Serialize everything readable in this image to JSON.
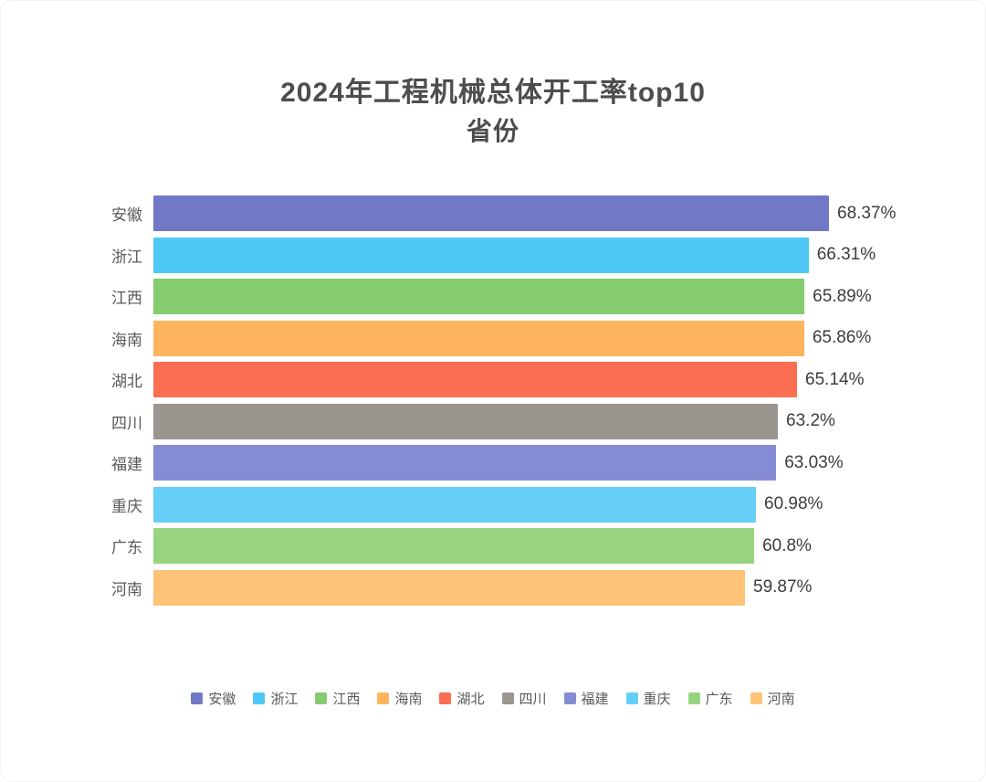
{
  "title": {
    "line1": "2024年工程机械总体开工率top10",
    "line2": "省份"
  },
  "chart_data": {
    "type": "bar",
    "orientation": "horizontal",
    "title": "2024年工程机械总体开工率top10 省份",
    "xlabel": "",
    "ylabel": "",
    "xlim": [
      0,
      70
    ],
    "grid": false,
    "categories": [
      "安徽",
      "浙江",
      "江西",
      "海南",
      "湖北",
      "四川",
      "福建",
      "重庆",
      "广东",
      "河南"
    ],
    "values": [
      68.37,
      66.31,
      65.89,
      65.86,
      65.14,
      63.2,
      63.03,
      60.98,
      60.8,
      59.87
    ],
    "value_labels": [
      "68.37%",
      "66.31%",
      "65.89%",
      "65.86%",
      "65.14%",
      "63.2%",
      "63.03%",
      "60.98%",
      "60.8%",
      "59.87%"
    ],
    "bar_colors": [
      "#7179c7",
      "#4ec9f5",
      "#84cc6d",
      "#fdb45c",
      "#fa6e51",
      "#9a968f",
      "#858cd3",
      "#66cff7",
      "#98d480",
      "#fec377"
    ],
    "legend": {
      "position": "bottom",
      "items": [
        {
          "label": "安徽",
          "color": "#7179c7"
        },
        {
          "label": "浙江",
          "color": "#4ec9f5"
        },
        {
          "label": "江西",
          "color": "#84cc6d"
        },
        {
          "label": "海南",
          "color": "#fdb45c"
        },
        {
          "label": "湖北",
          "color": "#fa6e51"
        },
        {
          "label": "四川",
          "color": "#9a968f"
        },
        {
          "label": "福建",
          "color": "#858cd3"
        },
        {
          "label": "重庆",
          "color": "#66cff7"
        },
        {
          "label": "广东",
          "color": "#98d480"
        },
        {
          "label": "河南",
          "color": "#fec377"
        }
      ]
    }
  }
}
